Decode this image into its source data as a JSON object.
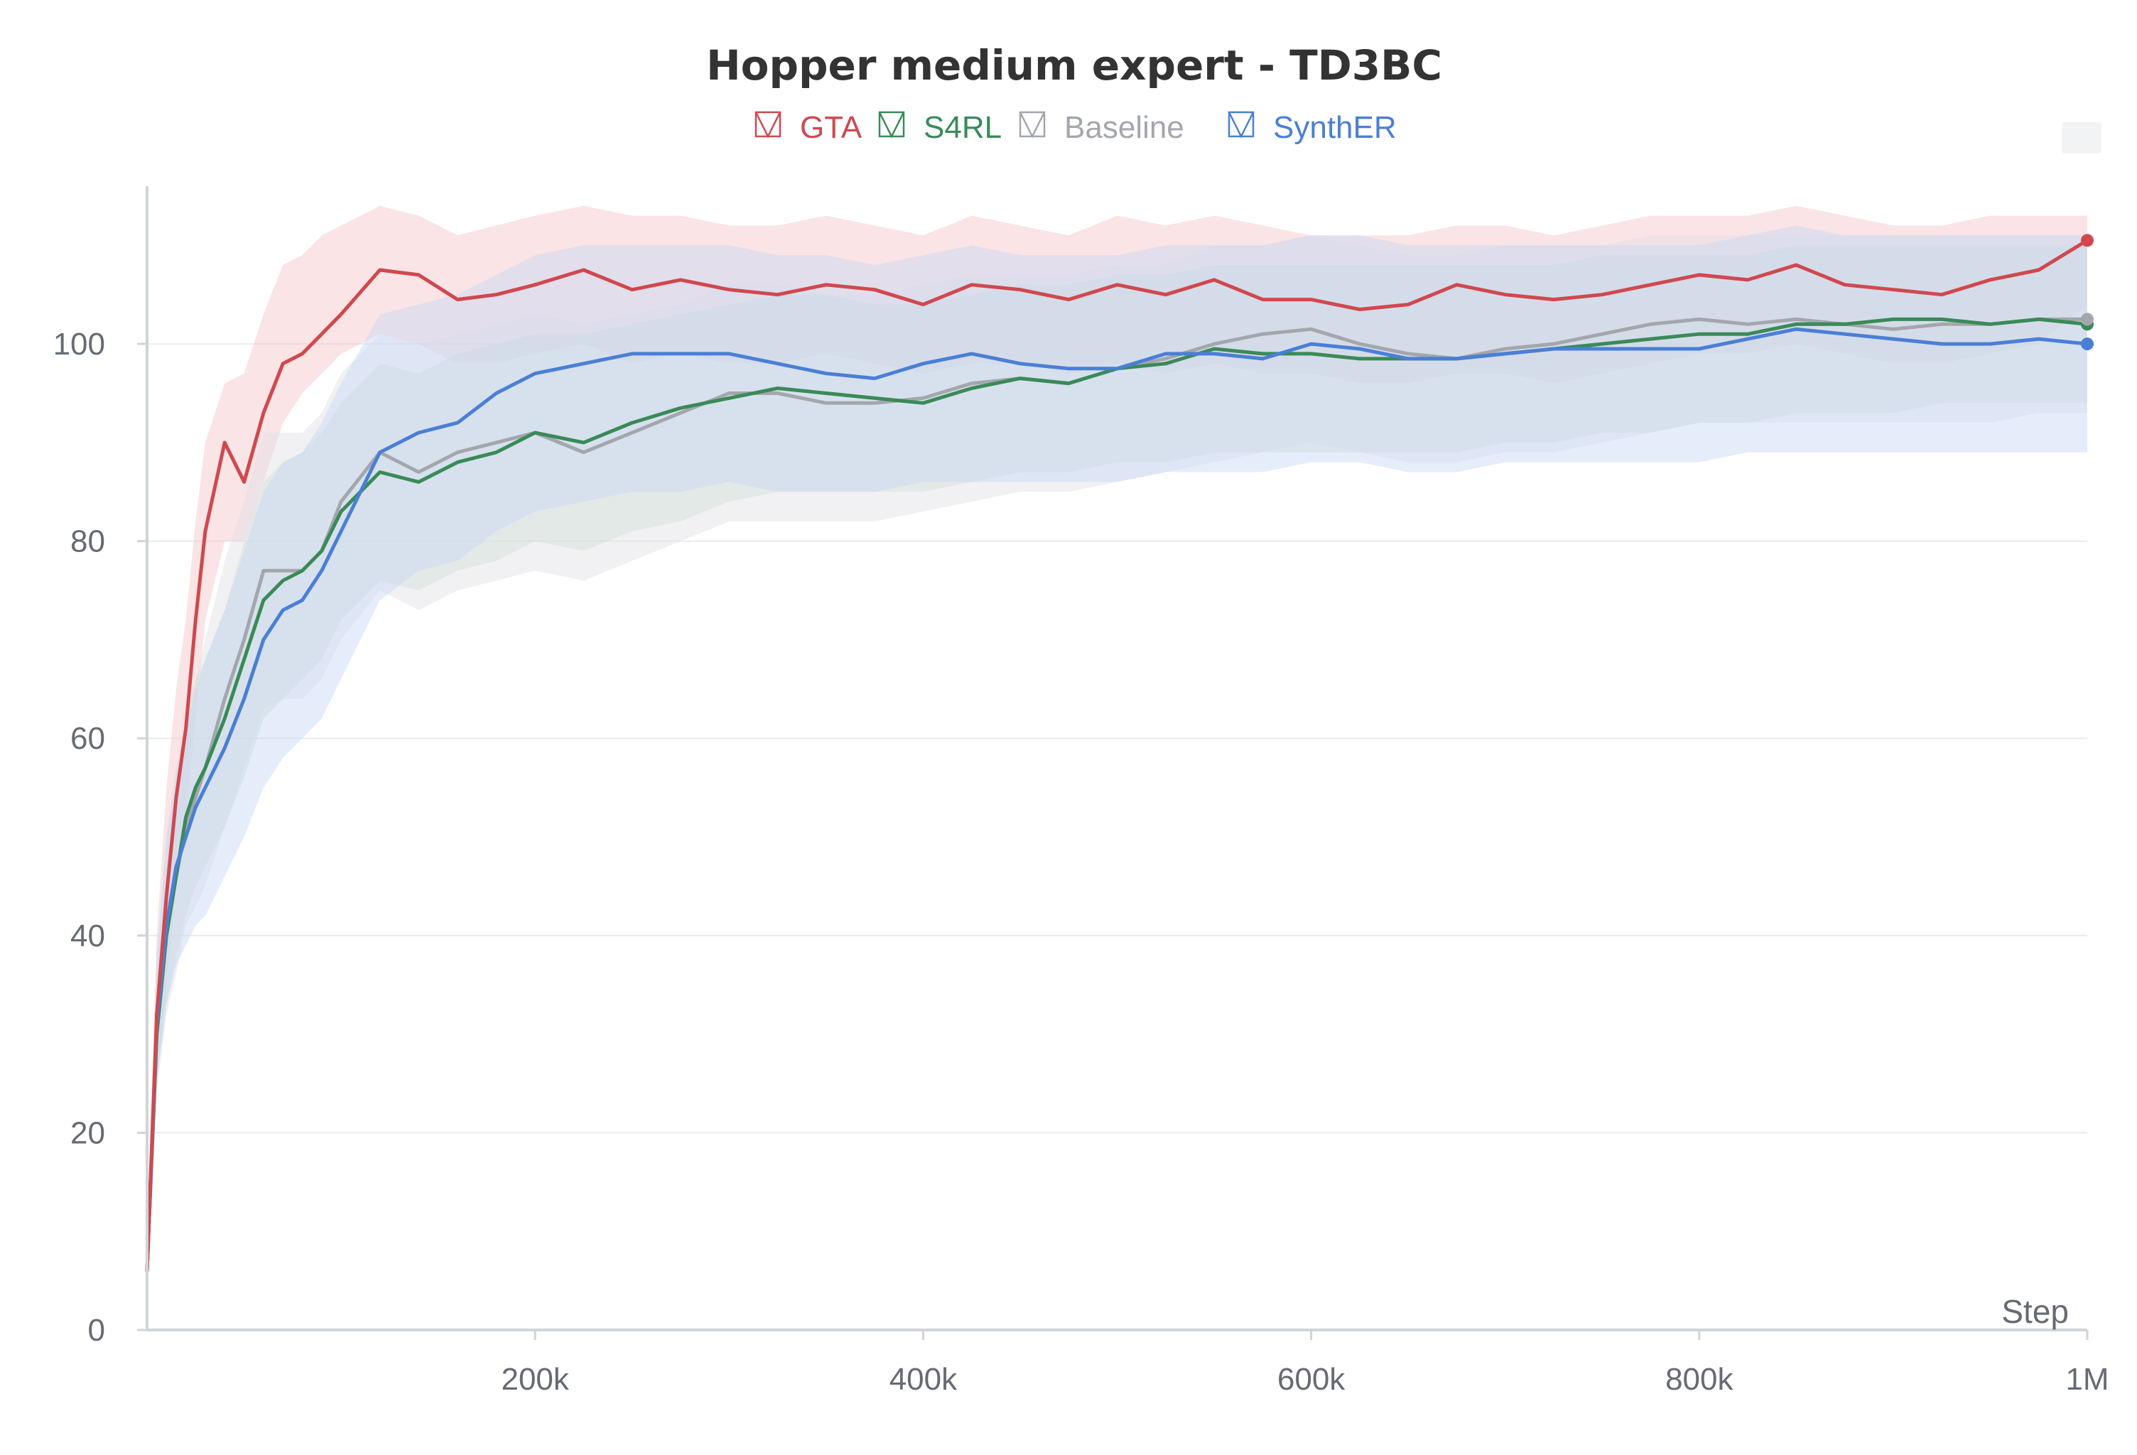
{
  "chart_data": {
    "type": "line",
    "title": "Hopper medium expert - TD3BC",
    "xlabel": "Step",
    "ylabel": "",
    "xlim": [
      0,
      1000000
    ],
    "ylim": [
      0,
      116
    ],
    "x_ticks": [
      200000,
      400000,
      600000,
      800000,
      1000000
    ],
    "x_tick_labels": [
      "200k",
      "400k",
      "600k",
      "800k",
      "1M"
    ],
    "y_ticks": [
      0,
      20,
      40,
      60,
      80,
      100
    ],
    "y_tick_labels": [
      "0",
      "20",
      "40",
      "60",
      "80",
      "100"
    ],
    "grid": true,
    "legend_position": "top-center",
    "x": [
      0,
      5000,
      10000,
      15000,
      20000,
      25000,
      30000,
      40000,
      50000,
      60000,
      70000,
      80000,
      90000,
      100000,
      120000,
      140000,
      160000,
      180000,
      200000,
      225000,
      250000,
      275000,
      300000,
      325000,
      350000,
      375000,
      400000,
      425000,
      450000,
      475000,
      500000,
      525000,
      550000,
      575000,
      600000,
      625000,
      650000,
      675000,
      700000,
      725000,
      750000,
      775000,
      800000,
      825000,
      850000,
      875000,
      900000,
      925000,
      950000,
      975000,
      1000000
    ],
    "series": [
      {
        "name": "GTA",
        "color": "#d0484e",
        "band_color": "#f3c3c6",
        "values": [
          6,
          32,
          44,
          54,
          61,
          72,
          81,
          90,
          86,
          93,
          98,
          99,
          101,
          103,
          107.5,
          107,
          104.5,
          105,
          106,
          107.5,
          105.5,
          106.5,
          105.5,
          105,
          106,
          105.5,
          104,
          106,
          105.5,
          104.5,
          106,
          105,
          106.5,
          104.5,
          104.5,
          103.5,
          104,
          106,
          105,
          104.5,
          105,
          106,
          107,
          106.5,
          108,
          106,
          105.5,
          105,
          106.5,
          107.5,
          110.5
        ],
        "lower": [
          3,
          25,
          35,
          45,
          52,
          62,
          72,
          80,
          80,
          86,
          92,
          95,
          97,
          99,
          101,
          100,
          98,
          98,
          99,
          100,
          98,
          99,
          98,
          98,
          99,
          98,
          97,
          98,
          98,
          97,
          98,
          97,
          98,
          97,
          97,
          96,
          96,
          97,
          97,
          96,
          97,
          98,
          99,
          99,
          100,
          99,
          98,
          98,
          99,
          100,
          104
        ],
        "upper": [
          10,
          40,
          55,
          65,
          72,
          82,
          90,
          96,
          97,
          103,
          108,
          109,
          111,
          112,
          114,
          113,
          111,
          112,
          113,
          114,
          113,
          113,
          112,
          112,
          113,
          112,
          111,
          113,
          112,
          111,
          113,
          112,
          113,
          112,
          111,
          111,
          111,
          112,
          112,
          111,
          112,
          113,
          113,
          113,
          114,
          113,
          112,
          112,
          113,
          113,
          113
        ]
      },
      {
        "name": "S4RL",
        "color": "#3a8a58",
        "band_color": "#c6e1cc",
        "values": [
          6,
          30,
          40,
          46,
          52,
          55,
          57,
          62,
          68,
          74,
          76,
          77,
          79,
          83,
          87,
          86,
          88,
          89,
          91,
          90,
          92,
          93.5,
          94.5,
          95.5,
          95,
          94.5,
          94,
          95.5,
          96.5,
          96,
          97.5,
          98,
          99.5,
          99,
          99,
          98.5,
          98.5,
          98.5,
          99,
          99.5,
          100,
          100.5,
          101,
          101,
          102,
          102,
          102.5,
          102.5,
          102,
          102.5,
          102
        ],
        "lower": [
          3,
          25,
          33,
          38,
          42,
          45,
          47,
          51,
          56,
          62,
          64,
          66,
          68,
          72,
          76,
          75,
          77,
          78,
          80,
          79,
          81,
          82,
          84,
          85,
          85,
          85,
          85,
          86,
          87,
          87,
          88,
          88,
          89,
          89,
          89,
          89,
          89,
          89,
          90,
          90,
          91,
          91,
          92,
          92,
          93,
          93,
          93,
          94,
          94,
          94,
          94
        ],
        "upper": [
          10,
          36,
          47,
          54,
          62,
          66,
          68,
          73,
          80,
          86,
          88,
          89,
          91,
          94,
          98,
          97,
          99,
          100,
          101,
          101,
          102,
          103,
          104,
          105,
          105,
          104,
          104,
          105,
          106,
          106,
          107,
          107,
          108,
          108,
          108,
          108,
          108,
          108,
          108,
          108,
          109,
          109,
          109,
          109,
          110,
          110,
          110,
          110,
          110,
          110,
          110
        ]
      },
      {
        "name": "Baseline",
        "color": "#a3a7ad",
        "band_color": "#dfe1e6",
        "values": [
          6,
          31,
          41,
          46,
          51,
          54,
          57,
          64,
          70,
          77,
          77,
          77,
          79,
          84,
          89,
          87,
          89,
          90,
          91,
          89,
          91,
          93,
          95,
          95,
          94,
          94,
          94.5,
          96,
          96.5,
          96,
          97.5,
          98.5,
          100,
          101,
          101.5,
          100,
          99,
          98.5,
          99.5,
          100,
          101,
          102,
          102.5,
          102,
          102.5,
          102,
          101.5,
          102,
          102,
          102.5,
          102.5
        ],
        "lower": [
          3,
          24,
          32,
          36,
          41,
          43,
          45,
          51,
          57,
          63,
          64,
          64,
          66,
          70,
          75,
          73,
          75,
          76,
          77,
          76,
          78,
          80,
          82,
          82,
          82,
          82,
          83,
          84,
          85,
          85,
          86,
          87,
          88,
          89,
          90,
          89,
          88,
          88,
          89,
          89,
          90,
          91,
          92,
          92,
          92,
          92,
          92,
          92,
          92,
          93,
          93
        ],
        "upper": [
          10,
          38,
          50,
          56,
          62,
          66,
          70,
          78,
          84,
          91,
          91,
          91,
          93,
          97,
          101,
          100,
          101,
          102,
          103,
          102,
          103,
          104,
          106,
          106,
          105,
          105,
          106,
          107,
          107,
          107,
          108,
          108,
          110,
          110,
          111,
          110,
          109,
          109,
          110,
          110,
          110,
          111,
          111,
          111,
          111,
          111,
          111,
          111,
          111,
          111,
          111
        ]
      },
      {
        "name": "SynthER",
        "color": "#4a7fd6",
        "band_color": "#c8d8f4",
        "values": [
          6,
          31,
          41,
          47,
          50,
          53,
          55,
          59,
          64,
          70,
          73,
          74,
          77,
          81,
          89,
          91,
          92,
          95,
          97,
          98,
          99,
          99,
          99,
          98,
          97,
          96.5,
          98,
          99,
          98,
          97.5,
          97.5,
          99,
          99,
          98.5,
          100,
          99.5,
          98.5,
          98.5,
          99,
          99.5,
          99.5,
          99.5,
          99.5,
          100.5,
          101.5,
          101,
          100.5,
          100,
          100,
          100.5,
          100
        ],
        "lower": [
          3,
          25,
          33,
          37,
          39,
          41,
          42,
          46,
          50,
          55,
          58,
          60,
          62,
          66,
          74,
          77,
          78,
          81,
          83,
          84,
          85,
          85,
          86,
          85,
          85,
          85,
          86,
          86,
          86,
          86,
          86,
          87,
          87,
          87,
          88,
          88,
          87,
          87,
          88,
          88,
          88,
          88,
          88,
          89,
          89,
          89,
          89,
          89,
          89,
          89,
          89
        ],
        "upper": [
          10,
          38,
          50,
          57,
          61,
          65,
          68,
          73,
          79,
          85,
          88,
          89,
          92,
          96,
          103,
          104,
          105,
          107,
          109,
          110,
          110,
          110,
          110,
          109,
          109,
          108,
          109,
          110,
          109,
          109,
          109,
          110,
          110,
          110,
          111,
          111,
          110,
          110,
          110,
          110,
          110,
          110,
          110,
          111,
          112,
          111,
          111,
          111,
          111,
          111,
          111
        ]
      }
    ]
  }
}
